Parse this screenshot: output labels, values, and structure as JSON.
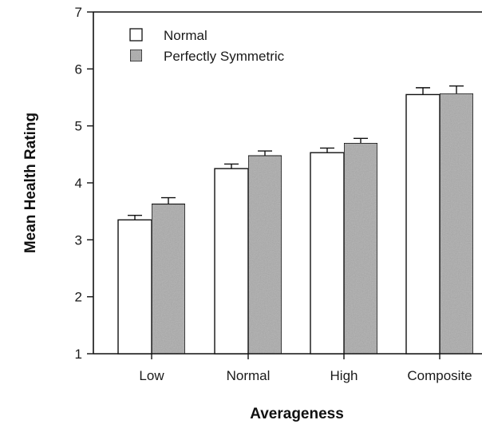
{
  "chart_data": {
    "type": "bar",
    "title": "",
    "xlabel": "Averageness",
    "ylabel": "Mean Health Rating",
    "categories": [
      "Low",
      "Normal",
      "High",
      "Composite"
    ],
    "series": [
      {
        "name": "Normal",
        "values": [
          3.35,
          4.25,
          4.53,
          5.55
        ],
        "errors": [
          0.08,
          0.08,
          0.08,
          0.12
        ],
        "color": "#ffffff"
      },
      {
        "name": "Perfectly Symmetric",
        "values": [
          3.63,
          4.48,
          4.7,
          5.57
        ],
        "errors": [
          0.11,
          0.08,
          0.08,
          0.13
        ],
        "color": "#bdbdbd"
      }
    ],
    "ylim": [
      1,
      7
    ],
    "yticks": [
      1,
      2,
      3,
      4,
      5,
      6,
      7
    ],
    "grid": false,
    "legend_position": "top-left"
  }
}
